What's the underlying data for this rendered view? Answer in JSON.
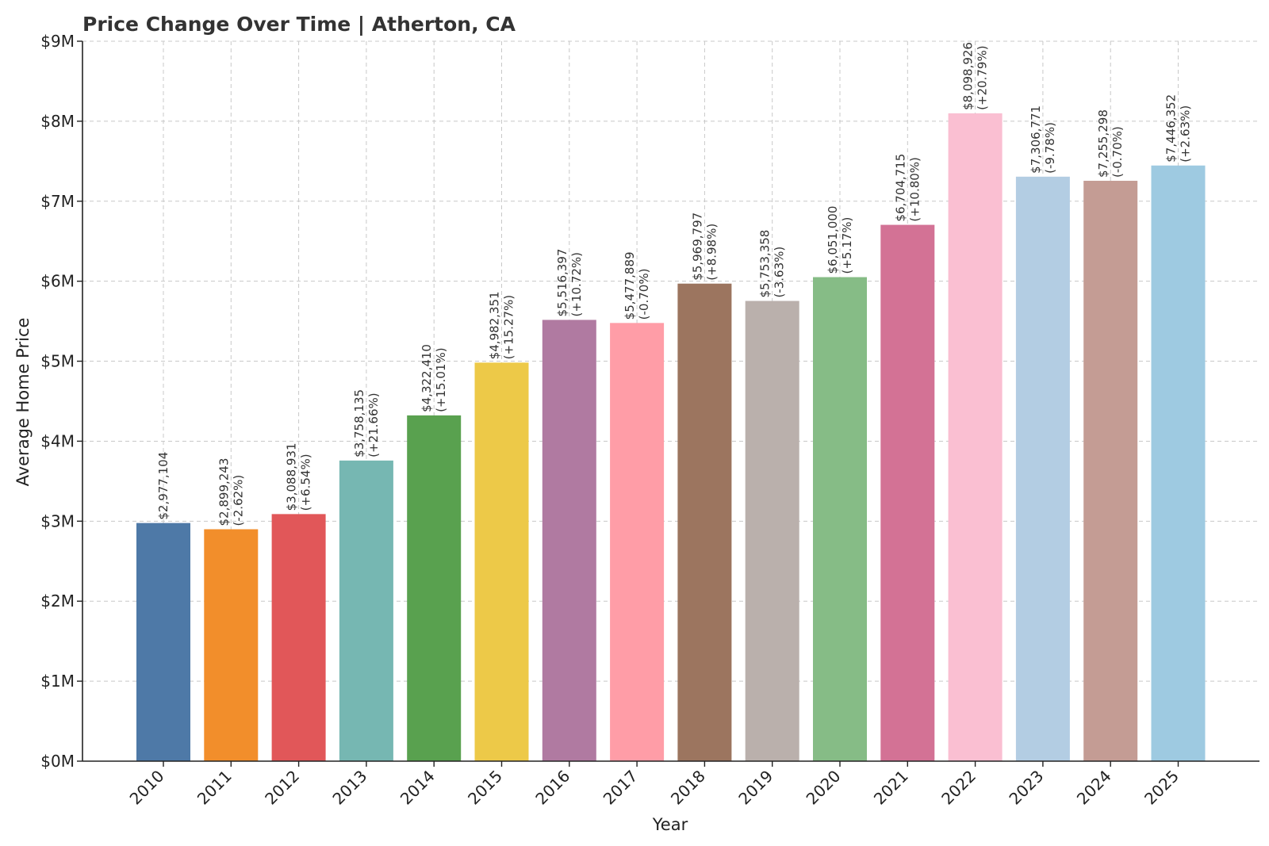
{
  "chart_data": {
    "type": "bar",
    "title": "Price Change Over Time | Atherton, CA",
    "xlabel": "Year",
    "ylabel": "Average Home Price",
    "ylim": [
      0,
      9000000
    ],
    "y_ticks": [
      {
        "value": 0,
        "label": "$0M"
      },
      {
        "value": 1000000,
        "label": "$1M"
      },
      {
        "value": 2000000,
        "label": "$2M"
      },
      {
        "value": 3000000,
        "label": "$3M"
      },
      {
        "value": 4000000,
        "label": "$4M"
      },
      {
        "value": 5000000,
        "label": "$5M"
      },
      {
        "value": 6000000,
        "label": "$6M"
      },
      {
        "value": 7000000,
        "label": "$7M"
      },
      {
        "value": 8000000,
        "label": "$8M"
      },
      {
        "value": 9000000,
        "label": "$9M"
      }
    ],
    "grid": true,
    "categories": [
      "2010",
      "2011",
      "2012",
      "2013",
      "2014",
      "2015",
      "2016",
      "2017",
      "2018",
      "2019",
      "2020",
      "2021",
      "2022",
      "2023",
      "2024",
      "2025"
    ],
    "values": [
      2977104,
      2899243,
      3088931,
      3758135,
      4322410,
      4982351,
      5516397,
      5477889,
      5969797,
      5753358,
      6051000,
      6704715,
      8098926,
      7306771,
      7255298,
      7446352
    ],
    "value_labels": [
      "$2,977,104",
      "$2,899,243",
      "$3,088,931",
      "$3,758,135",
      "$4,322,410",
      "$4,982,351",
      "$5,516,397",
      "$5,477,889",
      "$5,969,797",
      "$5,753,358",
      "$6,051,000",
      "$6,704,715",
      "$8,098,926",
      "$7,306,771",
      "$7,255,298",
      "$7,446,352"
    ],
    "change_labels": [
      "",
      "(-2.62%)",
      "(+6.54%)",
      "(+21.66%)",
      "(+15.01%)",
      "(+15.27%)",
      "(+10.72%)",
      "(-0.70%)",
      "(+8.98%)",
      "(-3.63%)",
      "(+5.17%)",
      "(+10.80%)",
      "(+20.79%)",
      "(-9.78%)",
      "(-0.70%)",
      "(+2.63%)"
    ],
    "colors": [
      "#4e79a7",
      "#f28e2b",
      "#e15759",
      "#76b7b2",
      "#59a14f",
      "#edc948",
      "#b07aa1",
      "#ff9da7",
      "#9c755f",
      "#bab0ac",
      "#86bc86",
      "#d37295",
      "#fabfd2",
      "#b3cde3",
      "#c49c94",
      "#9ecae1"
    ]
  }
}
